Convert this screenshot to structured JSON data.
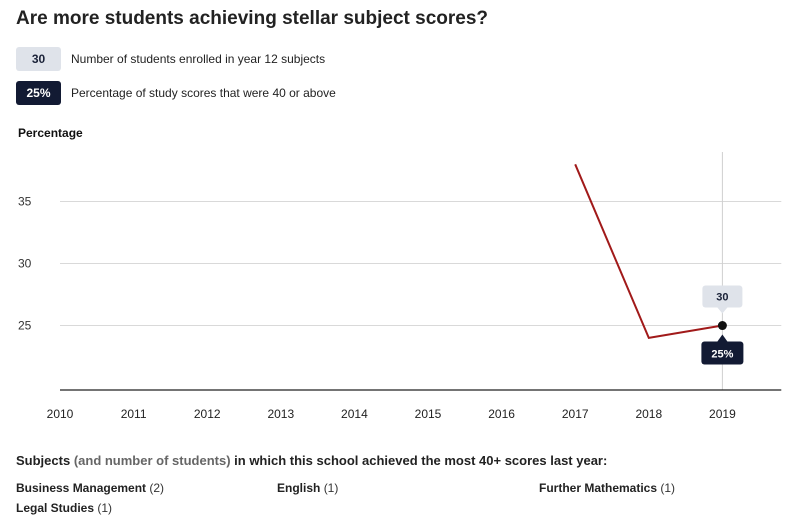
{
  "title": "Are more students achieving stellar subject scores?",
  "legend": [
    {
      "badge": "30",
      "text": "Number of students enrolled in year 12 subjects",
      "style": "light"
    },
    {
      "badge": "25%",
      "text": "Percentage of study scores that were 40 or above",
      "style": "dark"
    }
  ],
  "colors": {
    "line": "#a11a1a",
    "dark": "#121a33",
    "light": "#dfe3ea",
    "grid": "#d9d9d9"
  },
  "chart_data": {
    "type": "line",
    "ylabel": "Percentage",
    "xlabel": "",
    "x": [
      2010,
      2011,
      2012,
      2013,
      2014,
      2015,
      2016,
      2017,
      2018,
      2019
    ],
    "xlim": [
      2010,
      2019.8
    ],
    "ylim": [
      19.8,
      40
    ],
    "yticks": [
      25,
      30,
      35
    ],
    "grid": true,
    "series": [
      {
        "points": [
          [
            2017,
            38
          ],
          [
            2018,
            24
          ],
          [
            2019,
            25
          ]
        ]
      }
    ],
    "tooltip": {
      "year": 2019,
      "students": "30",
      "percentage": "25%"
    }
  },
  "subjects": {
    "heading_a": "Subjects",
    "heading_b": "(and number of students)",
    "heading_c": "in which this school achieved the most 40+ scores last year:",
    "items": [
      {
        "name": "Business Management",
        "count": "(2)"
      },
      {
        "name": "English",
        "count": "(1)"
      },
      {
        "name": "Further Mathematics",
        "count": "(1)"
      },
      {
        "name": "Legal Studies",
        "count": "(1)"
      }
    ]
  }
}
